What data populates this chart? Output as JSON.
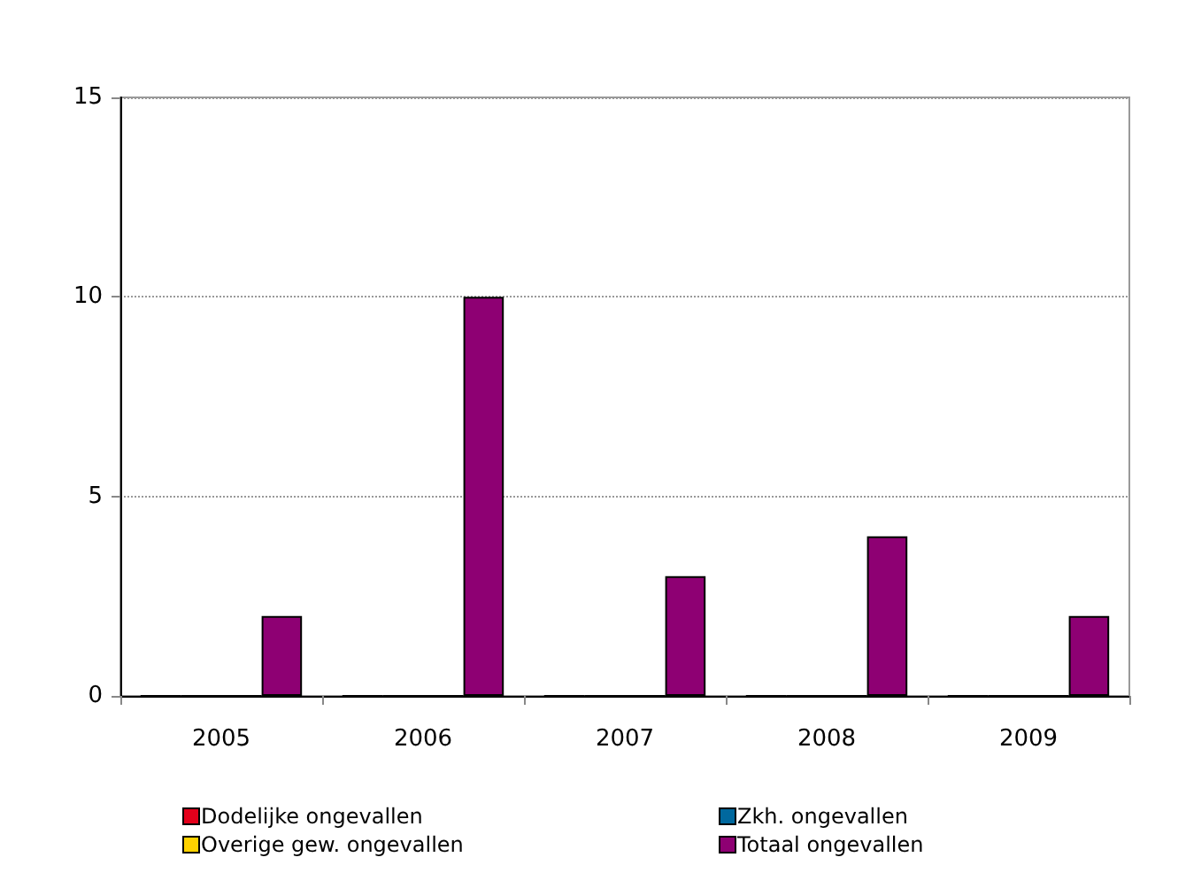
{
  "chart_data": {
    "type": "bar",
    "categories": [
      "2005",
      "2006",
      "2007",
      "2008",
      "2009"
    ],
    "series": [
      {
        "name": "Dodelijke ongevallen",
        "color": "#e3001b",
        "values": [
          0,
          0,
          0,
          0,
          0
        ]
      },
      {
        "name": "Zkh. ongevallen",
        "color": "#00689e",
        "values": [
          0,
          0,
          0,
          0,
          0
        ]
      },
      {
        "name": "Overige gew. ongevallen",
        "color": "#ffd200",
        "values": [
          0,
          0,
          0,
          0,
          0
        ]
      },
      {
        "name": "Totaal ongevallen",
        "color": "#8e0073",
        "values": [
          2,
          10,
          3,
          4,
          2
        ]
      }
    ],
    "ylim": [
      0,
      15
    ],
    "yticks": [
      0,
      5,
      10,
      15
    ],
    "grid": "y",
    "legend": "bottom"
  }
}
